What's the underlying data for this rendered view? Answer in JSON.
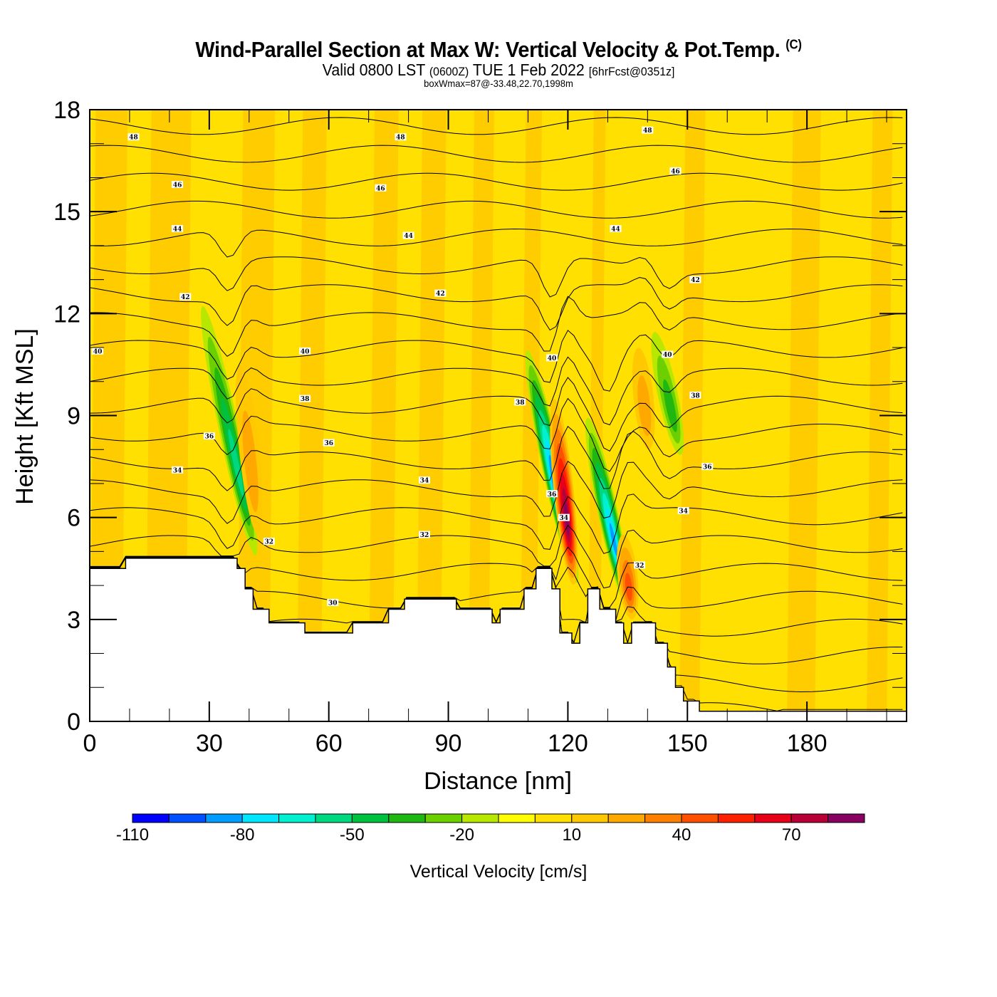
{
  "header": {
    "title": "Wind-Parallel Section at Max W: Vertical Velocity & Pot.Temp.",
    "copyright": "(C)",
    "valid_prefix": "Valid 0800 LST",
    "valid_utc": "(0600Z)",
    "valid_date": "TUE 1 Feb 2022",
    "forecast": "[6hrFcst@0351z]",
    "box_info": "boxWmax=87@-33.48,22.70,1998m"
  },
  "chart_data": {
    "type": "heatmap",
    "title": "Wind-Parallel Section at Max W: Vertical Velocity & Pot.Temp.",
    "xlabel": "Distance [nm]",
    "ylabel": "Height [Kft MSL]",
    "xlim": [
      0,
      205
    ],
    "ylim": [
      0,
      18
    ],
    "xticks": [
      0,
      30,
      60,
      90,
      120,
      150,
      180
    ],
    "xtick_labels": [
      "0",
      "30",
      "60",
      "90",
      "120",
      "150",
      "180"
    ],
    "x_minor_step": 10,
    "yticks": [
      0,
      3,
      6,
      9,
      12,
      15,
      18
    ],
    "ytick_labels": [
      "0",
      "3",
      "6",
      "9",
      "12",
      "15",
      "18"
    ],
    "y_minor_step": 1,
    "colorbar": {
      "title": "Vertical Velocity [cm/s]",
      "bounds": [
        -110,
        -100,
        -90,
        -80,
        -70,
        -60,
        -50,
        -40,
        -30,
        -20,
        -10,
        0,
        10,
        20,
        30,
        40,
        50,
        60,
        70,
        80,
        90
      ],
      "labels": [
        "-110",
        "-80",
        "-50",
        "-20",
        "10",
        "40",
        "70"
      ],
      "label_values": [
        -110,
        -80,
        -50,
        -20,
        10,
        40,
        70
      ],
      "colors": [
        "#0000ff",
        "#0050ff",
        "#009cff",
        "#00e6ff",
        "#00f0d0",
        "#00d880",
        "#00c040",
        "#20b810",
        "#6cd000",
        "#b8e800",
        "#ffff00",
        "#ffe000",
        "#ffc800",
        "#ffa800",
        "#ff8000",
        "#ff5000",
        "#ff2000",
        "#e80018",
        "#b80038",
        "#880060"
      ]
    },
    "terrain_kft": {
      "x_nm": [
        0,
        9,
        9,
        37,
        37,
        39,
        39,
        41,
        41,
        45,
        45,
        54,
        54,
        66,
        66,
        75,
        75,
        79,
        79,
        92,
        92,
        101,
        101,
        103,
        103,
        109,
        109,
        112,
        112,
        116,
        116,
        118,
        118,
        121,
        121,
        123,
        123,
        125,
        125,
        128,
        128,
        132,
        132,
        134,
        134,
        136,
        136,
        142,
        142,
        145,
        145,
        147,
        147,
        149,
        149,
        153,
        153,
        205
      ],
      "height": [
        4.5,
        4.5,
        4.8,
        4.8,
        4.5,
        4.5,
        3.9,
        3.9,
        3.3,
        3.3,
        2.9,
        2.9,
        2.6,
        2.6,
        2.9,
        2.9,
        3.3,
        3.3,
        3.6,
        3.6,
        3.3,
        3.3,
        2.9,
        2.9,
        3.3,
        3.3,
        3.9,
        3.9,
        4.5,
        4.5,
        3.9,
        3.9,
        2.6,
        2.6,
        2.3,
        2.3,
        2.9,
        2.9,
        3.9,
        3.9,
        3.3,
        3.3,
        2.9,
        2.9,
        2.3,
        2.3,
        2.9,
        2.9,
        2.3,
        2.3,
        1.6,
        1.6,
        1.0,
        1.0,
        0.6,
        0.6,
        0.3,
        0.3
      ]
    },
    "theta_contours_K": {
      "interval": 2,
      "levels": [
        28,
        29,
        30,
        31,
        32,
        33,
        34,
        35,
        36,
        37,
        38,
        39,
        40,
        41,
        42,
        43,
        44,
        45,
        46,
        47,
        48,
        49
      ],
      "labeled": [
        30,
        32,
        34,
        36,
        38,
        40,
        42,
        44,
        46,
        48
      ]
    },
    "contour_labels": [
      {
        "text": "48",
        "x": 11,
        "y": 17.2
      },
      {
        "text": "48",
        "x": 78,
        "y": 17.2
      },
      {
        "text": "48",
        "x": 140,
        "y": 17.4
      },
      {
        "text": "46",
        "x": 22,
        "y": 15.8
      },
      {
        "text": "46",
        "x": 73,
        "y": 15.7
      },
      {
        "text": "46",
        "x": 147,
        "y": 16.2
      },
      {
        "text": "44",
        "x": 22,
        "y": 14.5
      },
      {
        "text": "44",
        "x": 80,
        "y": 14.3
      },
      {
        "text": "44",
        "x": 132,
        "y": 14.5
      },
      {
        "text": "42",
        "x": 24,
        "y": 12.5
      },
      {
        "text": "42",
        "x": 88,
        "y": 12.6
      },
      {
        "text": "42",
        "x": 152,
        "y": 13.0
      },
      {
        "text": "40",
        "x": 2,
        "y": 10.9
      },
      {
        "text": "40",
        "x": 54,
        "y": 10.9
      },
      {
        "text": "40",
        "x": 116,
        "y": 10.7
      },
      {
        "text": "40",
        "x": 145,
        "y": 10.8
      },
      {
        "text": "38",
        "x": 54,
        "y": 9.5
      },
      {
        "text": "38",
        "x": 108,
        "y": 9.4
      },
      {
        "text": "38",
        "x": 152,
        "y": 9.6
      },
      {
        "text": "36",
        "x": 30,
        "y": 8.4
      },
      {
        "text": "36",
        "x": 60,
        "y": 8.2
      },
      {
        "text": "36",
        "x": 155,
        "y": 7.5
      },
      {
        "text": "36",
        "x": 116,
        "y": 6.7
      },
      {
        "text": "34",
        "x": 22,
        "y": 7.4
      },
      {
        "text": "34",
        "x": 84,
        "y": 7.1
      },
      {
        "text": "34",
        "x": 119,
        "y": 6.0
      },
      {
        "text": "34",
        "x": 149,
        "y": 6.2
      },
      {
        "text": "32",
        "x": 45,
        "y": 5.3
      },
      {
        "text": "32",
        "x": 84,
        "y": 5.5
      },
      {
        "text": "32",
        "x": 138,
        "y": 4.6
      },
      {
        "text": "30",
        "x": 61,
        "y": 3.5
      }
    ],
    "vertical_velocity_features": [
      {
        "kind": "downdraft",
        "x_center": 35,
        "y_bottom": 4.8,
        "y_top": 12.3,
        "peak_cm_s": -50
      },
      {
        "kind": "updraft",
        "x_center": 40,
        "y_bottom": 5.5,
        "y_top": 10.5,
        "peak_cm_s": 20
      },
      {
        "kind": "downdraft",
        "x_center": 116,
        "y_bottom": 4.0,
        "y_top": 11.0,
        "peak_cm_s": -100
      },
      {
        "kind": "updraft",
        "x_center": 119,
        "y_bottom": 4.0,
        "y_top": 9.5,
        "peak_cm_s": 87
      },
      {
        "kind": "downdraft",
        "x_center": 130,
        "y_bottom": 3.3,
        "y_top": 9.0,
        "peak_cm_s": -80
      },
      {
        "kind": "updraft",
        "x_center": 135,
        "y_bottom": 3.0,
        "y_top": 5.5,
        "peak_cm_s": 40
      },
      {
        "kind": "updraft",
        "x_center": 139,
        "y_bottom": 8.0,
        "y_top": 11.0,
        "peak_cm_s": 20
      },
      {
        "kind": "downdraft",
        "x_center": 145,
        "y_bottom": 7.8,
        "y_top": 11.5,
        "peak_cm_s": -30
      }
    ],
    "max_w": {
      "value_cm_s": 87,
      "lat": -33.48,
      "lon": 22.7,
      "height_m": 1998
    }
  }
}
